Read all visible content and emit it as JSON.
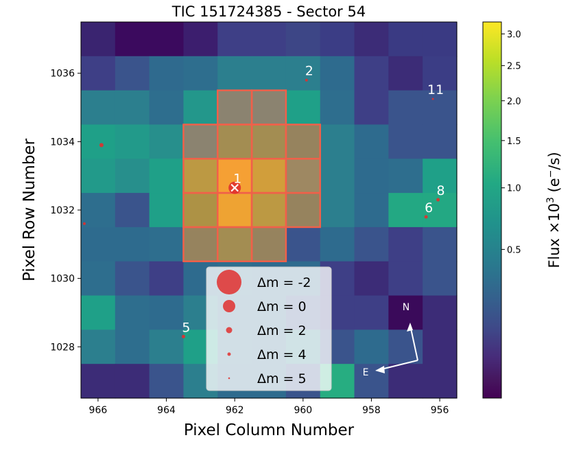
{
  "chart_data": {
    "type": "heatmap",
    "title": "TIC 151724385 - Sector 54",
    "xlabel": "Pixel Column Number",
    "ylabel": "Pixel Row Number",
    "colorbar_label": "Flux ×10³ (e⁻/s)",
    "colorbar_label_parts": {
      "prefix": "Flux ×10",
      "sup": "3",
      "mid": " (e",
      "sup2": "−",
      "suffix": "/s)"
    },
    "colormap": "viridis",
    "x_axis_inverted": true,
    "xlim": [
      966.5,
      955.5
    ],
    "ylim": [
      1026.5,
      1037.5
    ],
    "x_ticks": [
      966,
      964,
      962,
      960,
      958,
      956
    ],
    "y_ticks": [
      1028,
      1030,
      1032,
      1034,
      1036
    ],
    "colorbar_ticks": [
      {
        "value": 0.5,
        "label": "0.5"
      },
      {
        "value": 1.0,
        "label": "1.0"
      },
      {
        "value": 1.5,
        "label": "1.5"
      },
      {
        "value": 2.0,
        "label": "2.0"
      },
      {
        "value": 2.5,
        "label": "2.5"
      },
      {
        "value": 3.0,
        "label": "3.0"
      }
    ],
    "colorbar_range": [
      0.0,
      3.2
    ],
    "columns": [
      966,
      965,
      964,
      963,
      962,
      961,
      960,
      959,
      958,
      957,
      956
    ],
    "rows": [
      1037,
      1036,
      1035,
      1034,
      1033,
      1032,
      1031,
      1030,
      1029,
      1028,
      1027
    ],
    "grid_colors": [
      [
        "#3a2470",
        "#3b0a5e",
        "#3b0a5e",
        "#3c1e6e",
        "#3e3f86",
        "#3e3f86",
        "#3d4686",
        "#3b3d85",
        "#3c2c77",
        "#3a3a83",
        "#3a3a83"
      ],
      [
        "#3e3f86",
        "#3a548c",
        "#2f6a8e",
        "#2e6e8e",
        "#2c7f8e",
        "#2c7f8e",
        "#2c7f8e",
        "#2e6b8e",
        "#3e3f86",
        "#3c2c77",
        "#3b3d85"
      ],
      [
        "#2c7f8e",
        "#2c7f8e",
        "#2e6e8e",
        "#23978b",
        "#6f8e7b",
        "#6f8e7b",
        "#1fa088",
        "#2e6e8e",
        "#3e3f86",
        "#3a548c",
        "#3a548c"
      ],
      [
        "#1fa088",
        "#229a8a",
        "#278f8c",
        "#6f8e7b",
        "#8e9a55",
        "#8e9a55",
        "#7d8e65",
        "#2c7f8e",
        "#2e6b8e",
        "#3a548c",
        "#3a548c"
      ],
      [
        "#229a8a",
        "#278f8c",
        "#1fa088",
        "#adaa42",
        "#f7b22f",
        "#c8b038",
        "#87946a",
        "#2c7f8e",
        "#2e6b8e",
        "#2e6e8e",
        "#1fa088"
      ],
      [
        "#2e6e8e",
        "#3a548c",
        "#1fa088",
        "#9aa044",
        "#edb62e",
        "#adaa42",
        "#7d8e65",
        "#2c7f8e",
        "#2e6b8e",
        "#23a883",
        "#23a883"
      ],
      [
        "#2e6b8e",
        "#2e6b8e",
        "#2e6e8e",
        "#7d8e65",
        "#8e9a55",
        "#7d8e65",
        "#3a548c",
        "#2e6b8e",
        "#3a548c",
        "#3e3f86",
        "#3a548c"
      ],
      [
        "#2e6e8e",
        "#3a548c",
        "#3e3f86",
        "#2e6b8e",
        "#2e6e8e",
        "#2e6b8e",
        "#2e6b8e",
        "#3e3f86",
        "#3c2c77",
        "#3e3f86",
        "#3a548c"
      ],
      [
        "#1fa088",
        "#2e6e8e",
        "#2e6b8e",
        "#2c7f8e",
        "#2e6b8e",
        "#2e6b8e",
        "#3a548c",
        "#3e3f86",
        "#3e3f86",
        "#3a0a5a",
        "#3c2c77"
      ],
      [
        "#2c7f8e",
        "#2e6e8e",
        "#2c7f8e",
        "#1fa088",
        "#2e6e8e",
        "#2e6b8e",
        "#2c7f8e",
        "#3a548c",
        "#2e6b8e",
        "#3a548c",
        "#3c2c77"
      ],
      [
        "#3c2c77",
        "#3c2c77",
        "#3a548c",
        "#2c7f8e",
        "#2e6b8e",
        "#2e6b8e",
        "#3a548c",
        "#27ad81",
        "#3a548c",
        "#3c2c77",
        "#3c2c77"
      ]
    ],
    "aperture_pixels": [
      [
        962,
        1035
      ],
      [
        961,
        1035
      ],
      [
        963,
        1034
      ],
      [
        962,
        1034
      ],
      [
        961,
        1034
      ],
      [
        960,
        1034
      ],
      [
        963,
        1033
      ],
      [
        962,
        1033
      ],
      [
        961,
        1033
      ],
      [
        960,
        1033
      ],
      [
        963,
        1032
      ],
      [
        962,
        1032
      ],
      [
        961,
        1032
      ],
      [
        960,
        1032
      ],
      [
        963,
        1031
      ],
      [
        962,
        1031
      ],
      [
        961,
        1031
      ]
    ],
    "aperture_color": "#f0604a",
    "target": {
      "label": "1",
      "x": 962.0,
      "y": 1032.65,
      "marker": "x"
    },
    "stars": [
      {
        "label": "1",
        "x": 962.0,
        "y": 1032.65,
        "size": 9
      },
      {
        "label": "2",
        "x": 959.9,
        "y": 1035.8,
        "size": 2
      },
      {
        "label": "11",
        "x": 956.2,
        "y": 1035.25,
        "size": 1.5
      },
      {
        "label": "",
        "x": 965.9,
        "y": 1033.9,
        "size": 3
      },
      {
        "label": "8",
        "x": 956.05,
        "y": 1032.3,
        "size": 2.5
      },
      {
        "label": "6",
        "x": 956.4,
        "y": 1031.8,
        "size": 2.5
      },
      {
        "label": "",
        "x": 955.45,
        "y": 1031.95,
        "size": 2
      },
      {
        "label": "",
        "x": 966.4,
        "y": 1031.6,
        "size": 2
      },
      {
        "label": "5",
        "x": 963.5,
        "y": 1028.3,
        "size": 2.5
      }
    ],
    "star_color": "#e0302e",
    "legend": {
      "placement": "lower-center",
      "entries": [
        {
          "label": "Δm =  -2",
          "size": 18
        },
        {
          "label": "Δm =  0",
          "size": 9
        },
        {
          "label": "Δm =  2",
          "size": 4.5
        },
        {
          "label": "Δm =  4",
          "size": 2.5
        },
        {
          "label": "Δm =  5",
          "size": 1.3
        }
      ]
    },
    "compass": {
      "north": "N",
      "east": "E"
    }
  }
}
